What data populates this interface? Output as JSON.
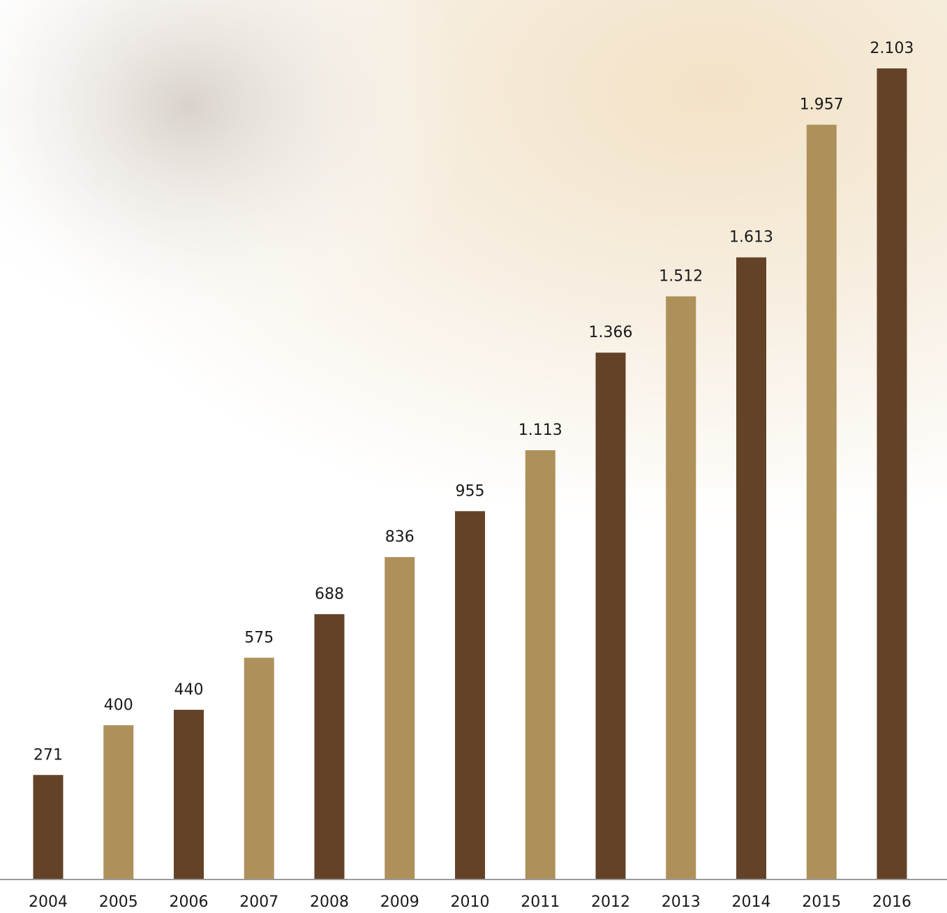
{
  "chart_data": {
    "type": "bar",
    "categories": [
      "2004",
      "2005",
      "2006",
      "2007",
      "2008",
      "2009",
      "2010",
      "2011",
      "2012",
      "2013",
      "2014",
      "2015",
      "2016"
    ],
    "values": [
      271,
      400,
      440,
      575,
      688,
      836,
      955,
      1113,
      1366,
      1512,
      1613,
      1957,
      2103
    ],
    "value_labels": [
      "271",
      "400",
      "440",
      "575",
      "688",
      "836",
      "955",
      "1.113",
      "1.366",
      "1.512",
      "1.613",
      "1.957",
      "2.103"
    ],
    "colors": [
      "#634227",
      "#ae915a",
      "#634227",
      "#ae915a",
      "#634227",
      "#ae915a",
      "#634227",
      "#ae915a",
      "#634227",
      "#ae915a",
      "#634227",
      "#ae915a",
      "#634227"
    ]
  }
}
